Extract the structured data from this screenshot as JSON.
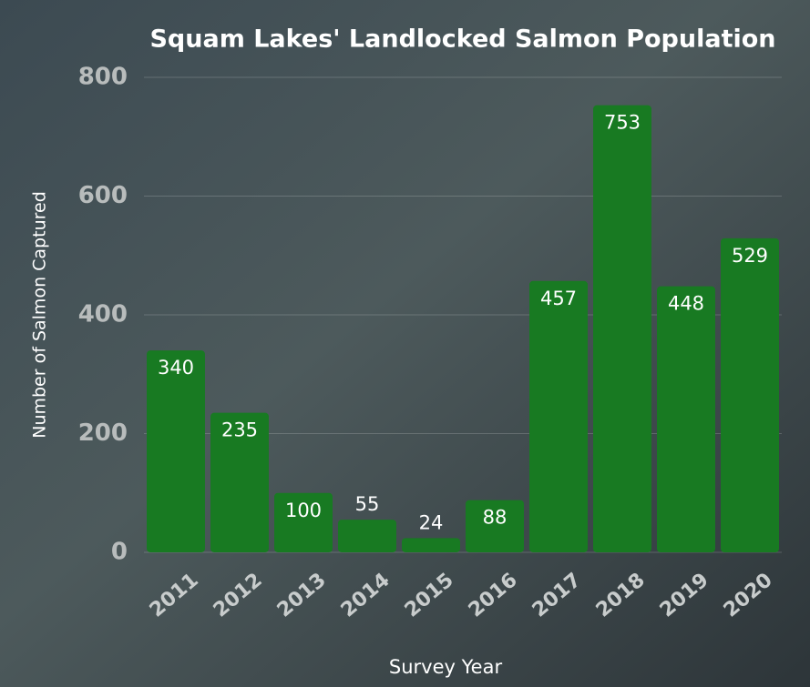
{
  "chart_data": {
    "type": "bar",
    "title": "Squam Lakes' Landlocked Salmon Population",
    "x_label": "Survey Year",
    "y_label": "Number of Salmon Captured",
    "categories": [
      "2011",
      "2012",
      "2013",
      "2014",
      "2015",
      "2016",
      "2017",
      "2018",
      "2019",
      "2020"
    ],
    "values": [
      340,
      235,
      100,
      55,
      24,
      88,
      457,
      753,
      448,
      529
    ],
    "color": "#187a22",
    "ylim": [
      0,
      800
    ],
    "yticks": [
      0,
      200,
      400,
      600,
      800
    ],
    "grid": true
  }
}
